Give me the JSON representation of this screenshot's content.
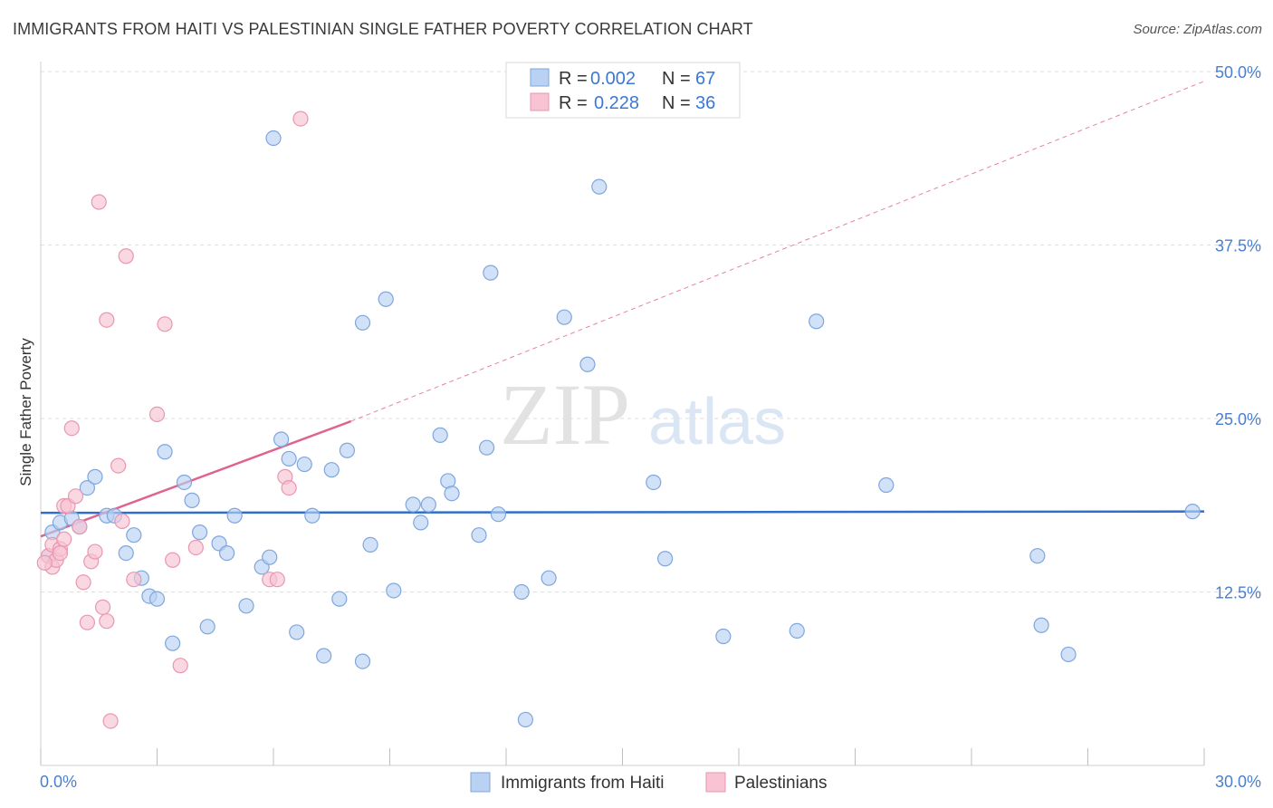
{
  "title": "IMMIGRANTS FROM HAITI VS PALESTINIAN SINGLE FATHER POVERTY CORRELATION CHART",
  "source": "Source: ZipAtlas.com",
  "watermark": {
    "zip": "ZIP",
    "atlas": "atlas"
  },
  "colors": {
    "haiti_fill": "#b9d1f3",
    "haiti_stroke": "#7fa6dd",
    "haiti_line": "#2f6fcb",
    "pal_fill": "#f8c3d3",
    "pal_stroke": "#ea96b1",
    "pal_line": "#e0628f",
    "axis_text": "#4a7fd0",
    "grid": "#dddddd"
  },
  "legend": {
    "rows": [
      {
        "r_label": "R =",
        "r_value": "0.002",
        "n_label": "N =",
        "n_value": "67"
      },
      {
        "r_label": "R =",
        "r_value": "0.228",
        "n_label": "N =",
        "n_value": "36"
      }
    ]
  },
  "chart_data": {
    "type": "scatter",
    "title": "IMMIGRANTS FROM HAITI VS PALESTINIAN SINGLE FATHER POVERTY CORRELATION CHART",
    "xlabel": "",
    "ylabel": "Single Father Poverty",
    "xlim": [
      0,
      30
    ],
    "ylim": [
      0,
      50
    ],
    "x_tick_labels": [
      "0.0%",
      "30.0%"
    ],
    "y_ticks": [
      12.5,
      25.0,
      37.5,
      50.0
    ],
    "y_tick_labels": [
      "12.5%",
      "25.0%",
      "37.5%",
      "50.0%"
    ],
    "grid": "horizontal dashed",
    "legend_position": "top-center",
    "series": [
      {
        "name": "Immigrants from Haiti",
        "r": 0.002,
        "n": 67,
        "trend": {
          "x": [
            0,
            30
          ],
          "y": [
            18.2,
            18.3
          ],
          "style": "solid"
        },
        "points": [
          [
            0.3,
            16.8
          ],
          [
            0.5,
            17.5
          ],
          [
            0.8,
            17.8
          ],
          [
            1.0,
            17.2
          ],
          [
            1.2,
            20.0
          ],
          [
            1.4,
            20.8
          ],
          [
            1.7,
            18.0
          ],
          [
            1.9,
            18.0
          ],
          [
            2.2,
            15.3
          ],
          [
            2.4,
            16.6
          ],
          [
            2.6,
            13.5
          ],
          [
            2.8,
            12.2
          ],
          [
            3.0,
            12.0
          ],
          [
            3.2,
            22.6
          ],
          [
            3.4,
            8.8
          ],
          [
            3.7,
            20.4
          ],
          [
            3.9,
            19.1
          ],
          [
            4.1,
            16.8
          ],
          [
            4.3,
            10.0
          ],
          [
            4.6,
            16.0
          ],
          [
            4.8,
            15.3
          ],
          [
            5.0,
            18.0
          ],
          [
            5.3,
            11.5
          ],
          [
            5.7,
            14.3
          ],
          [
            5.9,
            15.0
          ],
          [
            6.0,
            45.2
          ],
          [
            6.2,
            23.5
          ],
          [
            6.4,
            22.1
          ],
          [
            6.6,
            9.6
          ],
          [
            6.8,
            21.7
          ],
          [
            7.0,
            18.0
          ],
          [
            7.3,
            7.9
          ],
          [
            7.5,
            21.3
          ],
          [
            7.7,
            12.0
          ],
          [
            7.9,
            22.7
          ],
          [
            8.3,
            7.5
          ],
          [
            8.3,
            31.9
          ],
          [
            8.5,
            15.9
          ],
          [
            8.9,
            33.6
          ],
          [
            9.1,
            12.6
          ],
          [
            9.6,
            18.8
          ],
          [
            9.8,
            17.5
          ],
          [
            10.0,
            18.8
          ],
          [
            10.3,
            23.8
          ],
          [
            10.5,
            20.5
          ],
          [
            10.6,
            19.6
          ],
          [
            11.3,
            16.6
          ],
          [
            11.5,
            22.9
          ],
          [
            11.6,
            35.5
          ],
          [
            11.8,
            18.1
          ],
          [
            12.4,
            12.5
          ],
          [
            12.5,
            3.3
          ],
          [
            13.1,
            13.5
          ],
          [
            13.5,
            32.3
          ],
          [
            14.1,
            28.9
          ],
          [
            14.4,
            41.7
          ],
          [
            15.8,
            20.4
          ],
          [
            16.1,
            14.9
          ],
          [
            17.6,
            9.3
          ],
          [
            19.5,
            9.7
          ],
          [
            20.0,
            32.0
          ],
          [
            21.8,
            20.2
          ],
          [
            25.7,
            15.1
          ],
          [
            25.8,
            10.1
          ],
          [
            26.5,
            8.0
          ],
          [
            29.7,
            18.3
          ],
          [
            0.2,
            15.1
          ]
        ]
      },
      {
        "name": "Palestinians",
        "r": 0.228,
        "n": 36,
        "trend": {
          "x": [
            0,
            8.0
          ],
          "y": [
            16.5,
            24.8
          ],
          "style": "solid",
          "extended_to": [
            30,
            49.3
          ],
          "extended_style": "dashed"
        },
        "points": [
          [
            0.2,
            15.1
          ],
          [
            0.3,
            14.3
          ],
          [
            0.3,
            15.9
          ],
          [
            0.4,
            14.8
          ],
          [
            0.5,
            15.6
          ],
          [
            0.5,
            15.3
          ],
          [
            0.6,
            16.3
          ],
          [
            0.6,
            18.7
          ],
          [
            0.7,
            18.7
          ],
          [
            0.8,
            24.3
          ],
          [
            0.9,
            19.4
          ],
          [
            1.0,
            17.2
          ],
          [
            1.1,
            13.2
          ],
          [
            1.2,
            10.3
          ],
          [
            1.3,
            14.7
          ],
          [
            1.4,
            15.4
          ],
          [
            1.5,
            40.6
          ],
          [
            1.6,
            11.4
          ],
          [
            1.7,
            32.1
          ],
          [
            1.7,
            10.4
          ],
          [
            1.8,
            3.2
          ],
          [
            2.0,
            21.6
          ],
          [
            2.1,
            17.6
          ],
          [
            2.2,
            36.7
          ],
          [
            2.4,
            13.4
          ],
          [
            3.0,
            25.3
          ],
          [
            3.2,
            31.8
          ],
          [
            3.4,
            14.8
          ],
          [
            3.6,
            7.2
          ],
          [
            4.0,
            15.7
          ],
          [
            5.9,
            13.4
          ],
          [
            6.1,
            13.4
          ],
          [
            6.3,
            20.8
          ],
          [
            6.4,
            20.0
          ],
          [
            6.7,
            46.6
          ],
          [
            0.1,
            14.6
          ]
        ]
      }
    ]
  },
  "bottom_legend": {
    "items": [
      "Immigrants from Haiti",
      "Palestinians"
    ]
  }
}
